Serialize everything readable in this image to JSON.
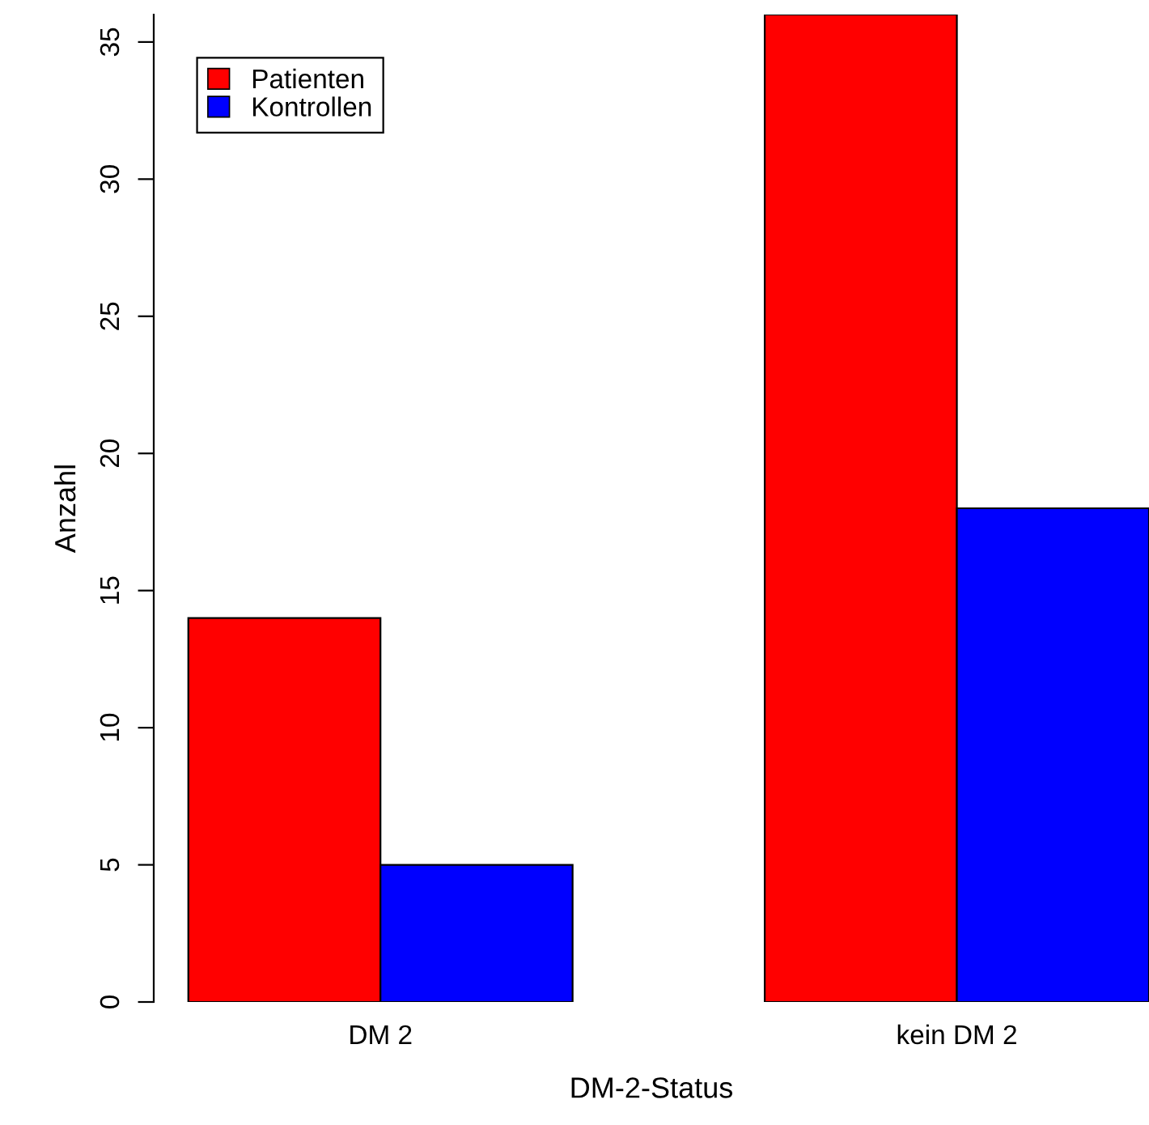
{
  "chart_data": {
    "type": "bar",
    "xlabel": "DM-2-Status",
    "ylabel": "Anzahl",
    "categories": [
      "DM 2",
      "kein DM 2"
    ],
    "series": [
      {
        "name": "Patienten",
        "color": "#ff0000",
        "values": [
          14,
          36
        ]
      },
      {
        "name": "Kontrollen",
        "color": "#0000ff",
        "values": [
          5,
          18
        ]
      }
    ],
    "ylim": [
      0,
      36
    ],
    "yticks": [
      0,
      5,
      10,
      15,
      20,
      25,
      30,
      35
    ],
    "grid": false,
    "legend": "top left"
  }
}
